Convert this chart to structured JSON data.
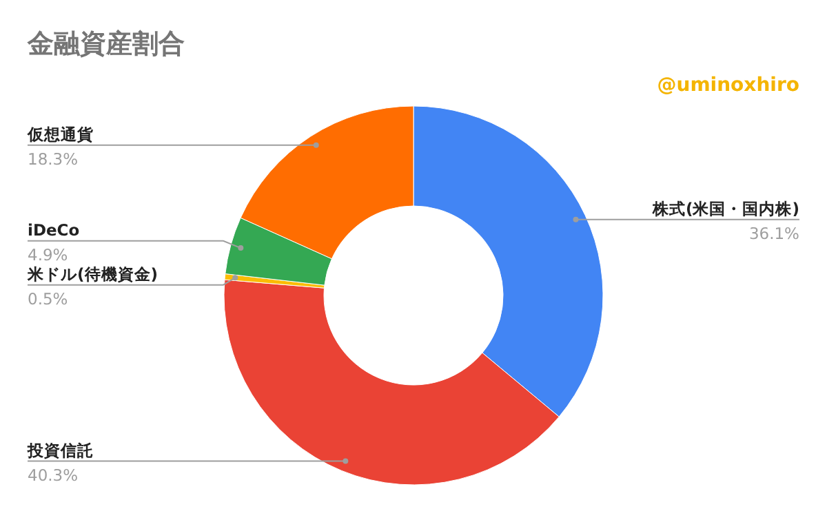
{
  "chart_data": {
    "type": "donut",
    "title": "金融資産割合",
    "annotations": [
      "@uminoxhiro"
    ],
    "categories": [
      "株式(米国・国内株)",
      "投資信託",
      "米ドル(待機資金)",
      "iDeCo",
      "仮想通貨"
    ],
    "values": [
      36.1,
      40.3,
      0.5,
      4.9,
      18.3
    ],
    "colors": [
      "#4285f4",
      "#ea4335",
      "#fbbc04",
      "#34a853",
      "#ff6d01"
    ],
    "value_labels": [
      "36.1%",
      "40.3%",
      "0.5%",
      "4.9%",
      "18.3%"
    ]
  }
}
